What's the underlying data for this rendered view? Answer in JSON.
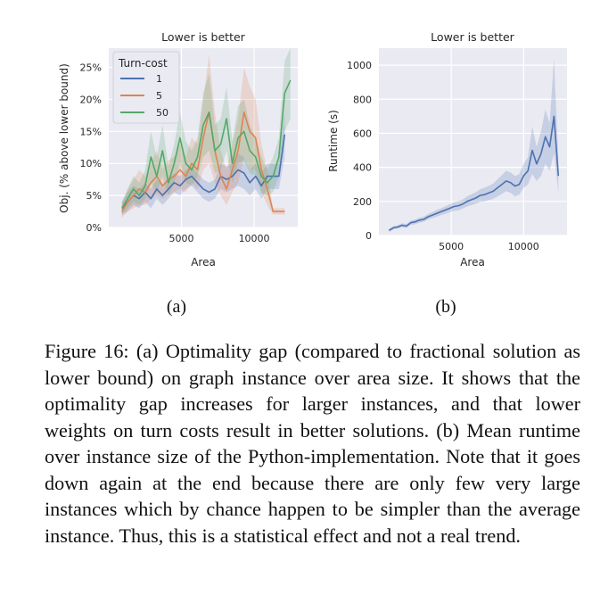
{
  "figure": {
    "caption_label": "Figure 16:",
    "caption_text": "(a) Optimality gap (compared to fractional solution as lower bound) on graph instance over area size. It shows that the optimality gap increases for larger instances, and that lower weights on turn costs result in better solutions. (b) Mean runtime over instance size of the Python-implementation. Note that it goes down again at the end because there are only few very large instances which by chance happen to be simpler than the average instance. Thus, this is a statistical effect and not a real trend.",
    "subfig_a": "(a)",
    "subfig_b": "(b)"
  },
  "chart_data": [
    {
      "type": "line",
      "title": "Lower is better",
      "xlabel": "Area",
      "ylabel": "Obj. (% above lower bound)",
      "xlim": [
        0,
        13000
      ],
      "ylim": [
        0,
        28
      ],
      "xticks": [
        5000,
        10000
      ],
      "xtick_labels": [
        "5000",
        "10000"
      ],
      "yticks": [
        0,
        5,
        10,
        15,
        20,
        25
      ],
      "ytick_labels": [
        "0%",
        "5%",
        "10%",
        "15%",
        "20%",
        "25%"
      ],
      "legend": {
        "title": "Turn-cost",
        "position": "top-left"
      },
      "series": [
        {
          "name": "1",
          "color": "#4c72b0",
          "x": [
            900,
            1300,
            1700,
            2100,
            2500,
            2900,
            3300,
            3700,
            4100,
            4500,
            4900,
            5300,
            5700,
            6100,
            6500,
            6900,
            7300,
            7700,
            8100,
            8500,
            8900,
            9300,
            9700,
            10100,
            10500,
            10900,
            11300,
            11700,
            12100
          ],
          "y": [
            3,
            4,
            5,
            4.5,
            5.5,
            4.5,
            6,
            5,
            6,
            7,
            6.5,
            7.5,
            8,
            7,
            6,
            5.5,
            6,
            8,
            7.5,
            8,
            9,
            8.5,
            7,
            8,
            6.5,
            8,
            8,
            8,
            14.5
          ],
          "lower": [
            2,
            2.5,
            3.5,
            3,
            4,
            3,
            4.5,
            3.5,
            4.5,
            5.5,
            5,
            6,
            6.5,
            5.5,
            4.5,
            4,
            4.5,
            6,
            5.5,
            6,
            6.5,
            6,
            5,
            6,
            4.5,
            6,
            6,
            6,
            11
          ],
          "upper": [
            4,
            5.5,
            6.5,
            6,
            7,
            6,
            7.5,
            6.5,
            7.5,
            8.5,
            8,
            9,
            9.5,
            8.5,
            7.5,
            7,
            7.5,
            10,
            9.5,
            10,
            11.5,
            11,
            9,
            10,
            8.5,
            10,
            10,
            10,
            18
          ]
        },
        {
          "name": "5",
          "color": "#dd8452",
          "x": [
            900,
            1300,
            1700,
            2100,
            2500,
            2900,
            3300,
            3700,
            4100,
            4500,
            4900,
            5300,
            5700,
            6100,
            6500,
            6900,
            7300,
            7700,
            8100,
            8500,
            8900,
            9300,
            9700,
            10100,
            10500,
            10900,
            11300,
            11700,
            12100
          ],
          "y": [
            2.5,
            4,
            5,
            6,
            5.5,
            7,
            8,
            6.5,
            7.5,
            8,
            9,
            8,
            10,
            9,
            14,
            18,
            12,
            8,
            6,
            9,
            12,
            18,
            15,
            14,
            9,
            6,
            2.5,
            2.5,
            2.5
          ],
          "lower": [
            1.5,
            2.5,
            3,
            3.5,
            3.5,
            4.5,
            5,
            4.5,
            5,
            5.5,
            6,
            5.5,
            7,
            6,
            9,
            10,
            7,
            5,
            3.5,
            5.5,
            7,
            11,
            9,
            9,
            5.5,
            3.5,
            2,
            2,
            2
          ],
          "upper": [
            3.5,
            6,
            7.5,
            9,
            8,
            10,
            12,
            9,
            10.5,
            11,
            13,
            11,
            14,
            13,
            20,
            27,
            18,
            12,
            9,
            13,
            17,
            25,
            22,
            20,
            13,
            9,
            3,
            3,
            3
          ]
        },
        {
          "name": "50",
          "color": "#55a868",
          "x": [
            900,
            1300,
            1700,
            2100,
            2500,
            2900,
            3300,
            3700,
            4100,
            4500,
            4900,
            5300,
            5700,
            6100,
            6500,
            6900,
            7300,
            7700,
            8100,
            8500,
            8900,
            9300,
            9700,
            10100,
            10500,
            10900,
            11300,
            11700,
            12100,
            12500
          ],
          "y": [
            3,
            4.5,
            6,
            5,
            6.5,
            11,
            8,
            12,
            7,
            10,
            14,
            10,
            9,
            11,
            16,
            18,
            12,
            13,
            17,
            10,
            14,
            15,
            12,
            11,
            8,
            7,
            8,
            11,
            21,
            23
          ],
          "lower": [
            2,
            3,
            4,
            3.5,
            4.5,
            7,
            5.5,
            8,
            5,
            7,
            10,
            7,
            6.5,
            8,
            11,
            12,
            8.5,
            9,
            12,
            7,
            10,
            10.5,
            8.5,
            8,
            5.5,
            5,
            5.5,
            8,
            15,
            17
          ],
          "upper": [
            4,
            6,
            8,
            7,
            9,
            15,
            11,
            16,
            9.5,
            13,
            18,
            13.5,
            12,
            14,
            21,
            24,
            16,
            17,
            22,
            13.5,
            19,
            20,
            16,
            14,
            11,
            9,
            11,
            14,
            26,
            28
          ]
        }
      ]
    },
    {
      "type": "line",
      "title": "Lower is better",
      "xlabel": "Area",
      "ylabel": "Runtime (s)",
      "xlim": [
        0,
        13000
      ],
      "ylim": [
        0,
        1100
      ],
      "xticks": [
        5000,
        10000
      ],
      "xtick_labels": [
        "5000",
        "10000"
      ],
      "yticks": [
        0,
        200,
        400,
        600,
        800,
        1000
      ],
      "ytick_labels": [
        "0",
        "200",
        "400",
        "600",
        "800",
        "1000"
      ],
      "series": [
        {
          "name": "runtime",
          "color": "#4c72b0",
          "x": [
            700,
            1000,
            1300,
            1600,
            1900,
            2200,
            2500,
            2800,
            3100,
            3400,
            3700,
            4000,
            4300,
            4600,
            4900,
            5200,
            5500,
            5800,
            6100,
            6400,
            6700,
            7000,
            7300,
            7600,
            7900,
            8200,
            8500,
            8800,
            9100,
            9400,
            9700,
            10000,
            10300,
            10600,
            10900,
            11200,
            11500,
            11800,
            12100,
            12400
          ],
          "y": [
            30,
            45,
            50,
            60,
            55,
            75,
            80,
            90,
            95,
            110,
            120,
            130,
            140,
            150,
            160,
            170,
            175,
            185,
            200,
            210,
            220,
            235,
            240,
            250,
            260,
            280,
            300,
            320,
            310,
            290,
            300,
            350,
            380,
            500,
            420,
            480,
            580,
            520,
            700,
            350
          ],
          "lower": [
            20,
            35,
            40,
            48,
            44,
            62,
            66,
            75,
            80,
            94,
            102,
            110,
            120,
            128,
            136,
            145,
            148,
            158,
            170,
            178,
            186,
            198,
            200,
            208,
            215,
            230,
            245,
            260,
            250,
            230,
            240,
            280,
            300,
            360,
            320,
            350,
            420,
            380,
            480,
            250
          ],
          "upper": [
            40,
            55,
            60,
            72,
            66,
            88,
            94,
            105,
            110,
            126,
            138,
            150,
            160,
            172,
            184,
            195,
            202,
            212,
            230,
            242,
            254,
            272,
            280,
            292,
            305,
            330,
            355,
            380,
            370,
            350,
            360,
            420,
            460,
            640,
            520,
            610,
            740,
            660,
            1040,
            450
          ]
        }
      ]
    }
  ]
}
